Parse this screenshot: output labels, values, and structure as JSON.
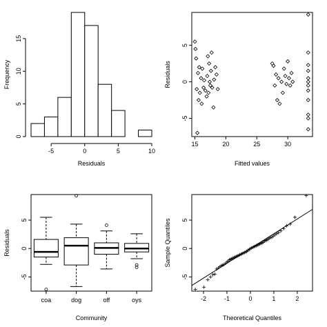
{
  "chart_data": [
    {
      "type": "histogram",
      "title": "",
      "xlabel": "Residuals",
      "ylabel": "Frequency",
      "xlim": [
        -8,
        10
      ],
      "ylim": [
        0,
        19
      ],
      "xticks": [
        -5,
        0,
        5,
        10
      ],
      "yticks": [
        0,
        5,
        10,
        15
      ],
      "bins": [
        {
          "from": -8,
          "to": -6,
          "count": 2
        },
        {
          "from": -6,
          "to": -4,
          "count": 3
        },
        {
          "from": -4,
          "to": -2,
          "count": 6
        },
        {
          "from": -2,
          "to": 0,
          "count": 19
        },
        {
          "from": 0,
          "to": 2,
          "count": 17
        },
        {
          "from": 2,
          "to": 4,
          "count": 8
        },
        {
          "from": 4,
          "to": 6,
          "count": 4
        },
        {
          "from": 6,
          "to": 8,
          "count": 0
        },
        {
          "from": 8,
          "to": 10,
          "count": 1
        }
      ]
    },
    {
      "type": "scatter",
      "title": "",
      "xlabel": "Fitted values",
      "ylabel": "Residuals",
      "xlim": [
        14.5,
        34
      ],
      "ylim": [
        -7.5,
        9.5
      ],
      "xticks": [
        15,
        20,
        25,
        30
      ],
      "yticks": [
        -5,
        0,
        5
      ],
      "points": [
        [
          15.0,
          5.5
        ],
        [
          15.1,
          4.5
        ],
        [
          15.2,
          3.2
        ],
        [
          15.3,
          -1.0
        ],
        [
          15.4,
          -7.0
        ],
        [
          15.5,
          1.2
        ],
        [
          15.6,
          -2.5
        ],
        [
          15.7,
          2.0
        ],
        [
          15.8,
          -1.5
        ],
        [
          16.0,
          0.5
        ],
        [
          16.1,
          -3.0
        ],
        [
          16.2,
          1.8
        ],
        [
          16.4,
          -0.8
        ],
        [
          16.5,
          0.2
        ],
        [
          16.7,
          -1.2
        ],
        [
          16.9,
          -2.0
        ],
        [
          17.0,
          0.8
        ],
        [
          17.1,
          3.5
        ],
        [
          17.2,
          -1.5
        ],
        [
          17.3,
          2.5
        ],
        [
          17.4,
          0.0
        ],
        [
          17.5,
          -0.5
        ],
        [
          17.6,
          1.5
        ],
        [
          17.7,
          4.0
        ],
        [
          17.8,
          -0.8
        ],
        [
          18.0,
          -3.5
        ],
        [
          18.1,
          0.3
        ],
        [
          18.3,
          2.0
        ],
        [
          18.5,
          1.0
        ],
        [
          18.7,
          -1.0
        ],
        [
          27.5,
          2.5
        ],
        [
          27.7,
          2.2
        ],
        [
          27.9,
          -0.5
        ],
        [
          28.1,
          1.0
        ],
        [
          28.3,
          -2.5
        ],
        [
          28.5,
          0.5
        ],
        [
          28.7,
          -3.0
        ],
        [
          29.0,
          0.0
        ],
        [
          29.2,
          -1.5
        ],
        [
          29.4,
          1.8
        ],
        [
          29.6,
          0.8
        ],
        [
          29.8,
          -0.3
        ],
        [
          30.0,
          2.8
        ],
        [
          30.2,
          0.5
        ],
        [
          30.4,
          -0.5
        ],
        [
          30.6,
          1.2
        ],
        [
          30.8,
          0.0
        ],
        [
          33.3,
          9.2
        ],
        [
          33.3,
          4.0
        ],
        [
          33.3,
          2.3
        ],
        [
          33.3,
          1.5
        ],
        [
          33.3,
          0.5
        ],
        [
          33.3,
          0.0
        ],
        [
          33.3,
          -0.5
        ],
        [
          33.3,
          -1.2
        ],
        [
          33.3,
          -2.5
        ],
        [
          33.3,
          -4.5
        ],
        [
          33.3,
          -5.0
        ],
        [
          33.3,
          -6.5
        ]
      ]
    },
    {
      "type": "boxplot",
      "title": "",
      "xlabel": "Community",
      "ylabel": "Residuals",
      "ylim": [
        -7.5,
        9.5
      ],
      "yticks": [
        -5,
        0,
        5
      ],
      "categories": [
        "coa",
        "dog",
        "off",
        "oys"
      ],
      "boxes": [
        {
          "name": "coa",
          "lower_whisker": -2.8,
          "q1": -1.5,
          "median": -0.6,
          "q3": 1.6,
          "upper_whisker": 5.5,
          "outliers": [
            -7.2
          ]
        },
        {
          "name": "dog",
          "lower_whisker": -6.7,
          "q1": -2.9,
          "median": 0.5,
          "q3": 1.9,
          "upper_whisker": 4.3,
          "outliers": [
            9.3
          ]
        },
        {
          "name": "off",
          "lower_whisker": -3.6,
          "q1": -1.0,
          "median": 0.1,
          "q3": 1.0,
          "upper_whisker": 3.1,
          "outliers": [
            4.1
          ]
        },
        {
          "name": "oys",
          "lower_whisker": -1.8,
          "q1": -0.6,
          "median": 0.0,
          "q3": 0.9,
          "upper_whisker": 2.6,
          "outliers": [
            -2.9,
            -3.3
          ]
        }
      ]
    },
    {
      "type": "qqplot",
      "title": "",
      "xlabel": "Theoretical Quantiles",
      "ylabel": "Sample Quantiles",
      "xlim": [
        -2.5,
        2.65
      ],
      "ylim": [
        -7.5,
        9.5
      ],
      "xticks": [
        -2,
        -1,
        0,
        1,
        2
      ],
      "yticks": [
        -5,
        0,
        5
      ],
      "reference_line": {
        "slope": 2.6,
        "intercept": 0.0
      },
      "points": [
        [
          -2.35,
          -7.2
        ],
        [
          -1.98,
          -6.8
        ],
        [
          -1.82,
          -5.5
        ],
        [
          -1.7,
          -5.0
        ],
        [
          -1.6,
          -4.6
        ],
        [
          -1.52,
          -4.5
        ],
        [
          -1.44,
          -3.6
        ],
        [
          -1.37,
          -3.4
        ],
        [
          -1.3,
          -3.2
        ],
        [
          -1.24,
          -3.0
        ],
        [
          -1.18,
          -2.9
        ],
        [
          -1.12,
          -2.8
        ],
        [
          -1.06,
          -2.6
        ],
        [
          -1.0,
          -2.4
        ],
        [
          -0.95,
          -2.2
        ],
        [
          -0.9,
          -2.0
        ],
        [
          -0.85,
          -1.9
        ],
        [
          -0.8,
          -1.8
        ],
        [
          -0.75,
          -1.7
        ],
        [
          -0.7,
          -1.6
        ],
        [
          -0.65,
          -1.5
        ],
        [
          -0.6,
          -1.4
        ],
        [
          -0.55,
          -1.3
        ],
        [
          -0.5,
          -1.2
        ],
        [
          -0.45,
          -1.1
        ],
        [
          -0.4,
          -1.0
        ],
        [
          -0.35,
          -0.9
        ],
        [
          -0.3,
          -0.8
        ],
        [
          -0.25,
          -0.7
        ],
        [
          -0.2,
          -0.6
        ],
        [
          -0.15,
          -0.5
        ],
        [
          -0.1,
          -0.3
        ],
        [
          -0.05,
          -0.2
        ],
        [
          0.0,
          0.0
        ],
        [
          0.05,
          0.1
        ],
        [
          0.1,
          0.2
        ],
        [
          0.15,
          0.3
        ],
        [
          0.2,
          0.4
        ],
        [
          0.25,
          0.5
        ],
        [
          0.3,
          0.6
        ],
        [
          0.35,
          0.7
        ],
        [
          0.4,
          0.8
        ],
        [
          0.45,
          0.9
        ],
        [
          0.5,
          1.0
        ],
        [
          0.55,
          1.1
        ],
        [
          0.6,
          1.3
        ],
        [
          0.65,
          1.4
        ],
        [
          0.7,
          1.5
        ],
        [
          0.75,
          1.6
        ],
        [
          0.8,
          1.8
        ],
        [
          0.86,
          1.9
        ],
        [
          0.92,
          2.0
        ],
        [
          0.98,
          2.2
        ],
        [
          1.05,
          2.4
        ],
        [
          1.12,
          2.6
        ],
        [
          1.2,
          2.8
        ],
        [
          1.3,
          3.1
        ],
        [
          1.42,
          3.5
        ],
        [
          1.55,
          4.0
        ],
        [
          1.7,
          4.3
        ],
        [
          1.9,
          5.5
        ],
        [
          2.38,
          9.3
        ]
      ]
    }
  ]
}
